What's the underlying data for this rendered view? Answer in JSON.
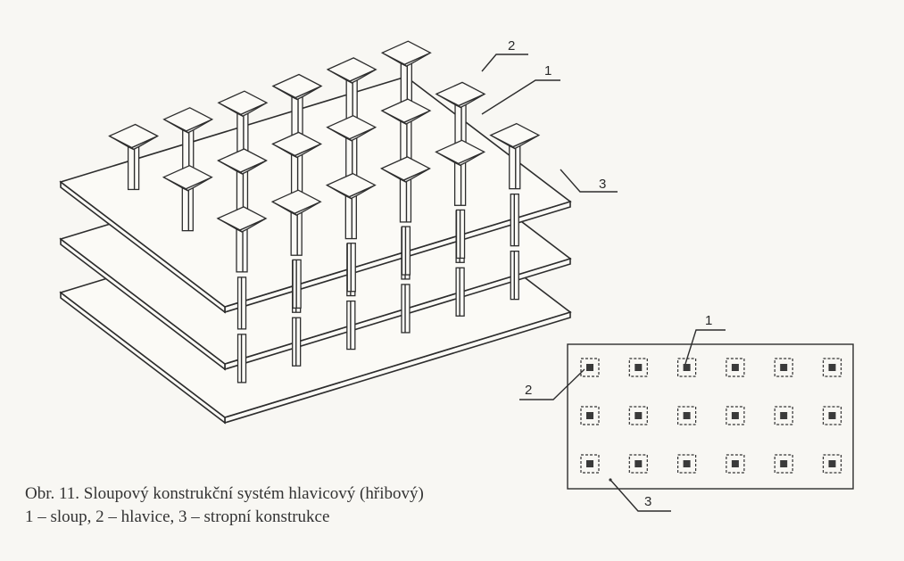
{
  "figure": {
    "caption_line1": "Obr. 11.  Sloupový konstrukční systém hlavicový (hřibový)",
    "caption_line2": "1 – sloup, 2 – hlavice, 3 – stropní konstrukce"
  },
  "iso_callouts": [
    {
      "id": "hlavice",
      "label": "2"
    },
    {
      "id": "sloup",
      "label": "1"
    },
    {
      "id": "stropni-konstrukce",
      "label": "3"
    }
  ],
  "plan_callouts": [
    {
      "id": "sloup",
      "label": "1"
    },
    {
      "id": "hlavice",
      "label": "2"
    },
    {
      "id": "stropni-konstrukce",
      "label": "3"
    }
  ],
  "plan_grid": {
    "rows": 3,
    "cols": 6
  },
  "iso_grid": {
    "rows": 3,
    "cols": 6,
    "floors": 3
  }
}
